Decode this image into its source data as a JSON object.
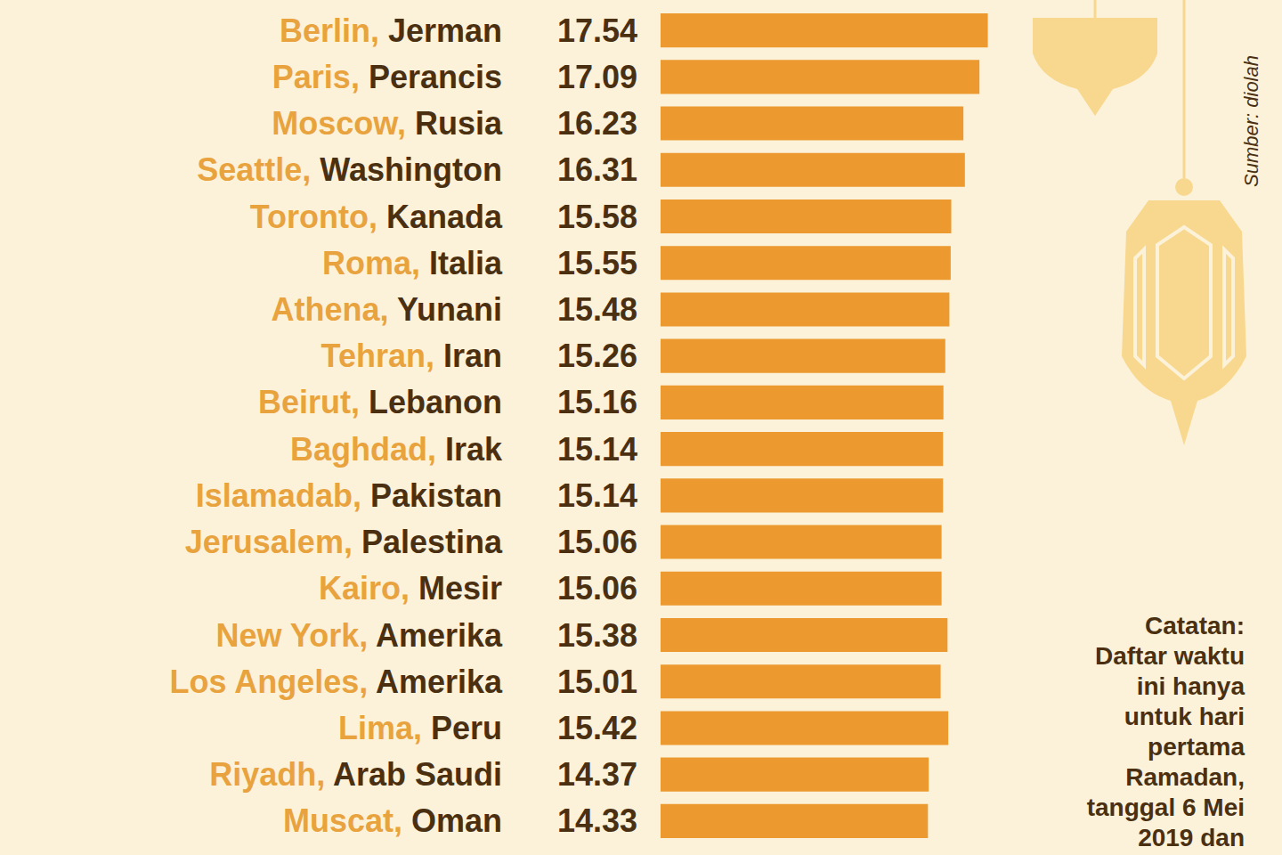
{
  "chart_data": {
    "type": "bar",
    "orientation": "horizontal",
    "categories": [
      "Berlin, Jerman",
      "Paris, Perancis",
      "Moscow, Rusia",
      "Seattle, Washington",
      "Toronto, Kanada",
      "Roma, Italia",
      "Athena, Yunani",
      "Tehran, Iran",
      "Beirut, Lebanon",
      "Baghdad, Irak",
      "Islamadab, Pakistan",
      "Jerusalem, Palestina",
      "Kairo, Mesir",
      "New York, Amerika",
      "Los Angeles, Amerika",
      "Lima, Peru",
      "Riyadh, Arab Saudi",
      "Muscat, Oman"
    ],
    "values": [
      17.54,
      17.09,
      16.23,
      16.31,
      15.58,
      15.55,
      15.48,
      15.26,
      15.16,
      15.14,
      15.14,
      15.06,
      15.06,
      15.38,
      15.01,
      15.42,
      14.37,
      14.33
    ],
    "color": "#ec9a2f",
    "xlim": [
      0,
      17.56
    ],
    "xticks": [],
    "tick_labels": "y",
    "data_labels": true,
    "grid": false
  },
  "notes": {
    "catatan": [
      "Catatan:",
      "Daftar waktu",
      "ini hanya",
      "untuk hari",
      "pertama",
      "Ramadan,",
      "tanggal 6 Mei",
      "2019 dan"
    ],
    "source": "Sumber: diolah"
  }
}
